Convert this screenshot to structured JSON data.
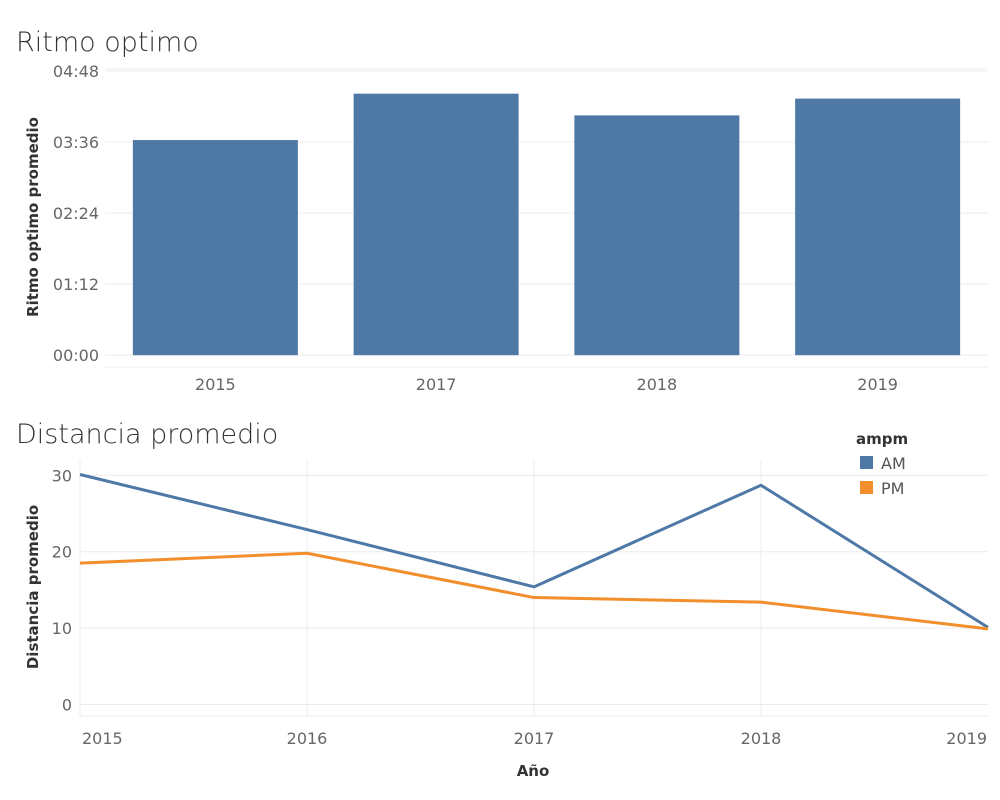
{
  "chart_data": [
    {
      "type": "bar",
      "title": "Ritmo optimo",
      "ylabel": "Ritmo optimo promedio",
      "xlabel": "",
      "categories": [
        "2015",
        "2017",
        "2018",
        "2019"
      ],
      "values_seconds": [
        218,
        265,
        243,
        260
      ],
      "ytick_labels": [
        "00:00",
        "01:12",
        "02:24",
        "03:36",
        "04:48"
      ],
      "ytick_values_seconds": [
        0,
        72,
        144,
        216,
        288
      ],
      "ylim_seconds": [
        -12,
        290
      ],
      "grid": true,
      "color": "#4e79a7"
    },
    {
      "type": "line",
      "title": "Distancia promedio",
      "ylabel": "Distancia promedio",
      "xlabel": "Año",
      "x": [
        "2015",
        "2016",
        "2017",
        "2018",
        "2019"
      ],
      "series": [
        {
          "name": "AM",
          "color": "#4e79a7",
          "values": [
            30.1,
            22.9,
            15.4,
            28.7,
            10.1
          ]
        },
        {
          "name": "PM",
          "color": "#f28e2b",
          "values": [
            18.5,
            19.8,
            14.0,
            13.4,
            9.9
          ]
        }
      ],
      "yticks": [
        0,
        10,
        20,
        30
      ],
      "ylim": [
        -1.5,
        32
      ],
      "legend_title": "ampm",
      "legend_position": "top-right",
      "grid": true
    }
  ]
}
